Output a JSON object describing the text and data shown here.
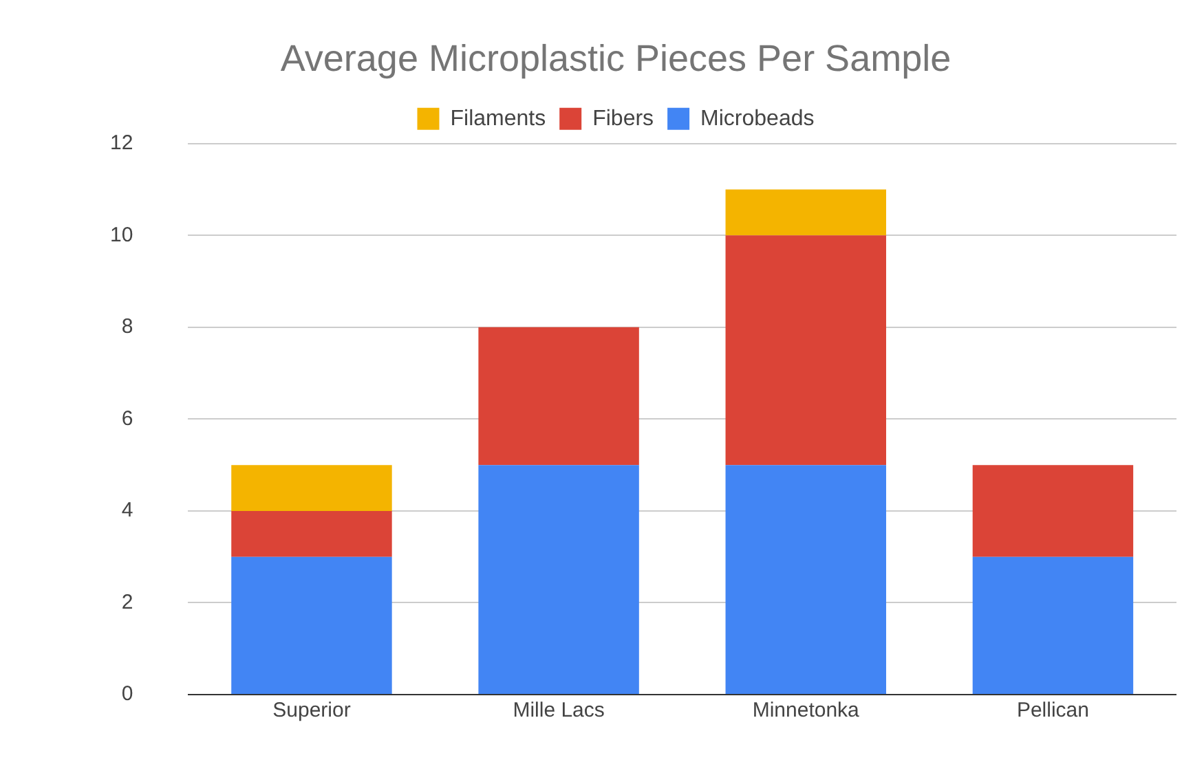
{
  "chart_data": {
    "type": "bar",
    "title": "Average Microplastic Pieces Per Sample",
    "categories": [
      "Superior",
      "Mille Lacs",
      "Minnetonka",
      "Pellican"
    ],
    "stacked": true,
    "series": [
      {
        "name": "Microbeads",
        "color": "#4285f4",
        "values": [
          3,
          5,
          5,
          3
        ]
      },
      {
        "name": "Fibers",
        "color": "#db4437",
        "values": [
          1,
          3,
          5,
          2
        ]
      },
      {
        "name": "Filaments",
        "color": "#f4b400",
        "values": [
          1,
          0,
          1,
          0
        ]
      }
    ],
    "ylim": [
      0,
      12
    ],
    "yticks": [
      0,
      2,
      4,
      6,
      8,
      10,
      12
    ],
    "grid": "y",
    "legend": "top"
  }
}
